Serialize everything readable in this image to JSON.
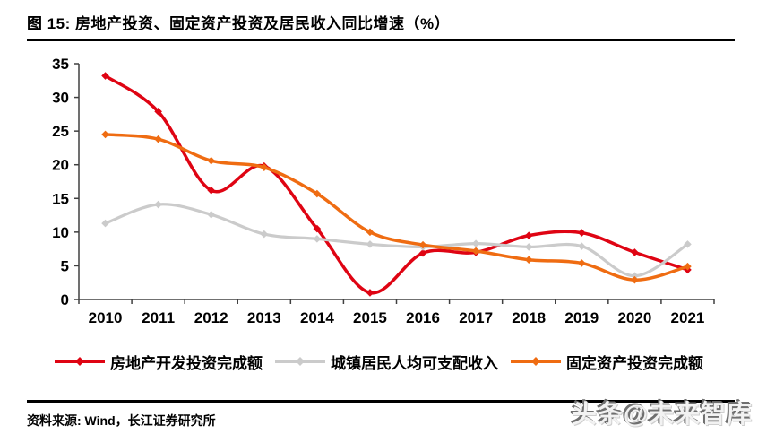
{
  "figure": {
    "title": "图 15: 房地产投资、固定资产投资及居民收入同比增速（%）"
  },
  "source": {
    "label": "资料来源: Wind，长江证券研究所"
  },
  "watermark": {
    "text": "头条@未来智库"
  },
  "colors": {
    "red": "#df0413",
    "gray": "#cbcbcb",
    "orange": "#ef6c12",
    "axis": "#404040",
    "label": "#000000"
  },
  "chart_data": {
    "type": "line",
    "title": "图 15: 房地产投资、固定资产投资及居民收入同比增速（%）",
    "categories": [
      "2010",
      "2011",
      "2012",
      "2013",
      "2014",
      "2015",
      "2016",
      "2017",
      "2018",
      "2019",
      "2020",
      "2021"
    ],
    "series": [
      {
        "name": "房地产开发投资完成额",
        "color_key": "red",
        "values": [
          33.2,
          27.9,
          16.2,
          19.8,
          10.5,
          1.0,
          6.9,
          7.0,
          9.5,
          9.9,
          7.0,
          4.4
        ]
      },
      {
        "name": "城镇居民人均可支配收入",
        "color_key": "gray",
        "values": [
          11.3,
          14.1,
          12.6,
          9.7,
          9.0,
          8.2,
          7.8,
          8.3,
          7.8,
          7.9,
          3.5,
          8.2
        ]
      },
      {
        "name": "固定资产投资完成额",
        "color_key": "orange",
        "values": [
          24.5,
          23.8,
          20.6,
          19.6,
          15.7,
          10.0,
          8.1,
          7.2,
          5.9,
          5.4,
          2.9,
          4.9
        ]
      }
    ],
    "ylim": [
      0,
      35
    ],
    "ytick_step": 5,
    "grid": false,
    "legend_position": "bottom",
    "smooth": true,
    "xlabel": "",
    "ylabel": ""
  }
}
